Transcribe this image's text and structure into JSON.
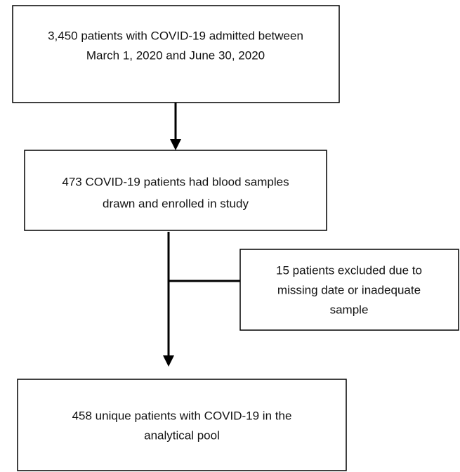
{
  "nodes": [
    {
      "lines": [
        "3,450 patients with COVID-19 admitted between",
        "March 1, 2020 and June 30, 2020"
      ]
    },
    {
      "lines": [
        "473 COVID-19 patients had blood samples",
        "drawn and enrolled in study"
      ]
    },
    {
      "lines": [
        "15 patients excluded due to",
        "missing date or inadequate",
        "sample"
      ]
    },
    {
      "lines": [
        "458 unique patients with COVID-19 in the",
        "analytical pool"
      ]
    }
  ]
}
